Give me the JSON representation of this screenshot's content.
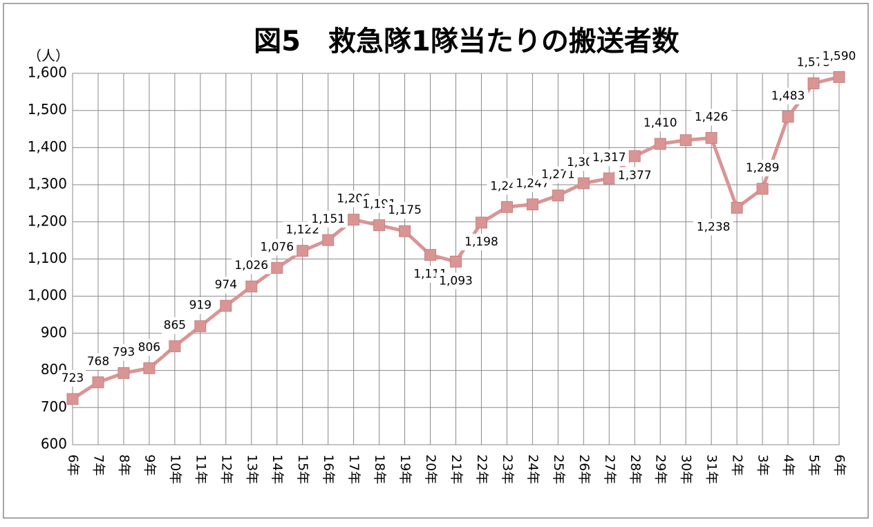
{
  "chart_data": {
    "type": "line",
    "title": "図5　救急隊1隊当たりの搬送者数",
    "y_label": "（人）",
    "categories": [
      "6年",
      "7年",
      "8年",
      "9年",
      "10年",
      "11年",
      "12年",
      "13年",
      "14年",
      "15年",
      "16年",
      "17年",
      "18年",
      "19年",
      "20年",
      "21年",
      "22年",
      "23年",
      "24年",
      "25年",
      "26年",
      "27年",
      "28年",
      "29年",
      "30年",
      "31年",
      "2年",
      "3年",
      "4年",
      "5年",
      "6年"
    ],
    "series": [
      {
        "name": "搬送者数",
        "color": "#d99594",
        "values": [
          723,
          768,
          793,
          806,
          865,
          919,
          974,
          1026,
          1076,
          1122,
          1151,
          1206,
          1191,
          1175,
          1111,
          1093,
          1198,
          1240,
          1247,
          1271,
          1304,
          1317,
          1377,
          1410,
          1420,
          1426,
          1238,
          1289,
          1483,
          1573,
          1590
        ],
        "value_labels": [
          "723",
          "768",
          "793",
          "806",
          "865",
          "919",
          "974",
          "1,026",
          "1,076",
          "1,122",
          "1,151",
          "1,206",
          "1,191",
          "1,175",
          "1,111",
          "1,093",
          "1,198",
          "1,240",
          "1,247",
          "1,271",
          "1,304",
          "1,317",
          "1,377",
          "1,410",
          null,
          "1,426",
          "1,238",
          "1,289",
          "1,483",
          "1,573",
          "1,590"
        ]
      }
    ],
    "ylim": [
      600,
      1600
    ],
    "yticks": [
      600,
      700,
      800,
      900,
      {
        "value": 1000,
        "label": "1,000"
      },
      {
        "value": 1100,
        "label": "1,100"
      },
      {
        "value": 1200,
        "label": "1,200"
      },
      {
        "value": 1300,
        "label": "1,300"
      },
      {
        "value": 1400,
        "label": "1,400"
      },
      {
        "value": 1500,
        "label": "1,500"
      },
      {
        "value": 1600,
        "label": "1,600"
      }
    ],
    "grid": true
  }
}
